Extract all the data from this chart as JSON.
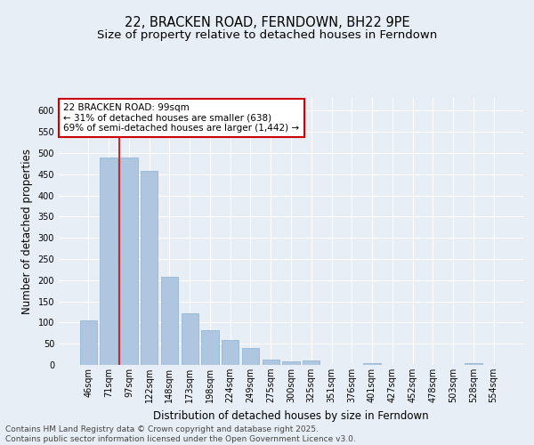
{
  "title1": "22, BRACKEN ROAD, FERNDOWN, BH22 9PE",
  "title2": "Size of property relative to detached houses in Ferndown",
  "xlabel": "Distribution of detached houses by size in Ferndown",
  "ylabel": "Number of detached properties",
  "categories": [
    "46sqm",
    "71sqm",
    "97sqm",
    "122sqm",
    "148sqm",
    "173sqm",
    "198sqm",
    "224sqm",
    "249sqm",
    "275sqm",
    "300sqm",
    "325sqm",
    "351sqm",
    "376sqm",
    "401sqm",
    "427sqm",
    "452sqm",
    "478sqm",
    "503sqm",
    "528sqm",
    "554sqm"
  ],
  "values": [
    105,
    490,
    490,
    458,
    207,
    122,
    82,
    58,
    40,
    13,
    9,
    10,
    0,
    0,
    5,
    0,
    0,
    0,
    0,
    5,
    0
  ],
  "bar_color": "#aec6e0",
  "bar_edge_color": "#8ab0d0",
  "vline_color": "#cc0000",
  "vline_x": 1.5,
  "annotation_text": "22 BRACKEN ROAD: 99sqm\n← 31% of detached houses are smaller (638)\n69% of semi-detached houses are larger (1,442) →",
  "annotation_box_color": "white",
  "annotation_box_edge": "#cc0000",
  "ylim": [
    0,
    630
  ],
  "yticks": [
    0,
    50,
    100,
    150,
    200,
    250,
    300,
    350,
    400,
    450,
    500,
    550,
    600
  ],
  "bg_color": "#e8eef5",
  "footer": "Contains HM Land Registry data © Crown copyright and database right 2025.\nContains public sector information licensed under the Open Government Licence v3.0.",
  "title1_fontsize": 10.5,
  "title2_fontsize": 9.5,
  "axis_label_fontsize": 8.5,
  "tick_fontsize": 7,
  "annot_fontsize": 7.5,
  "footer_fontsize": 6.5
}
